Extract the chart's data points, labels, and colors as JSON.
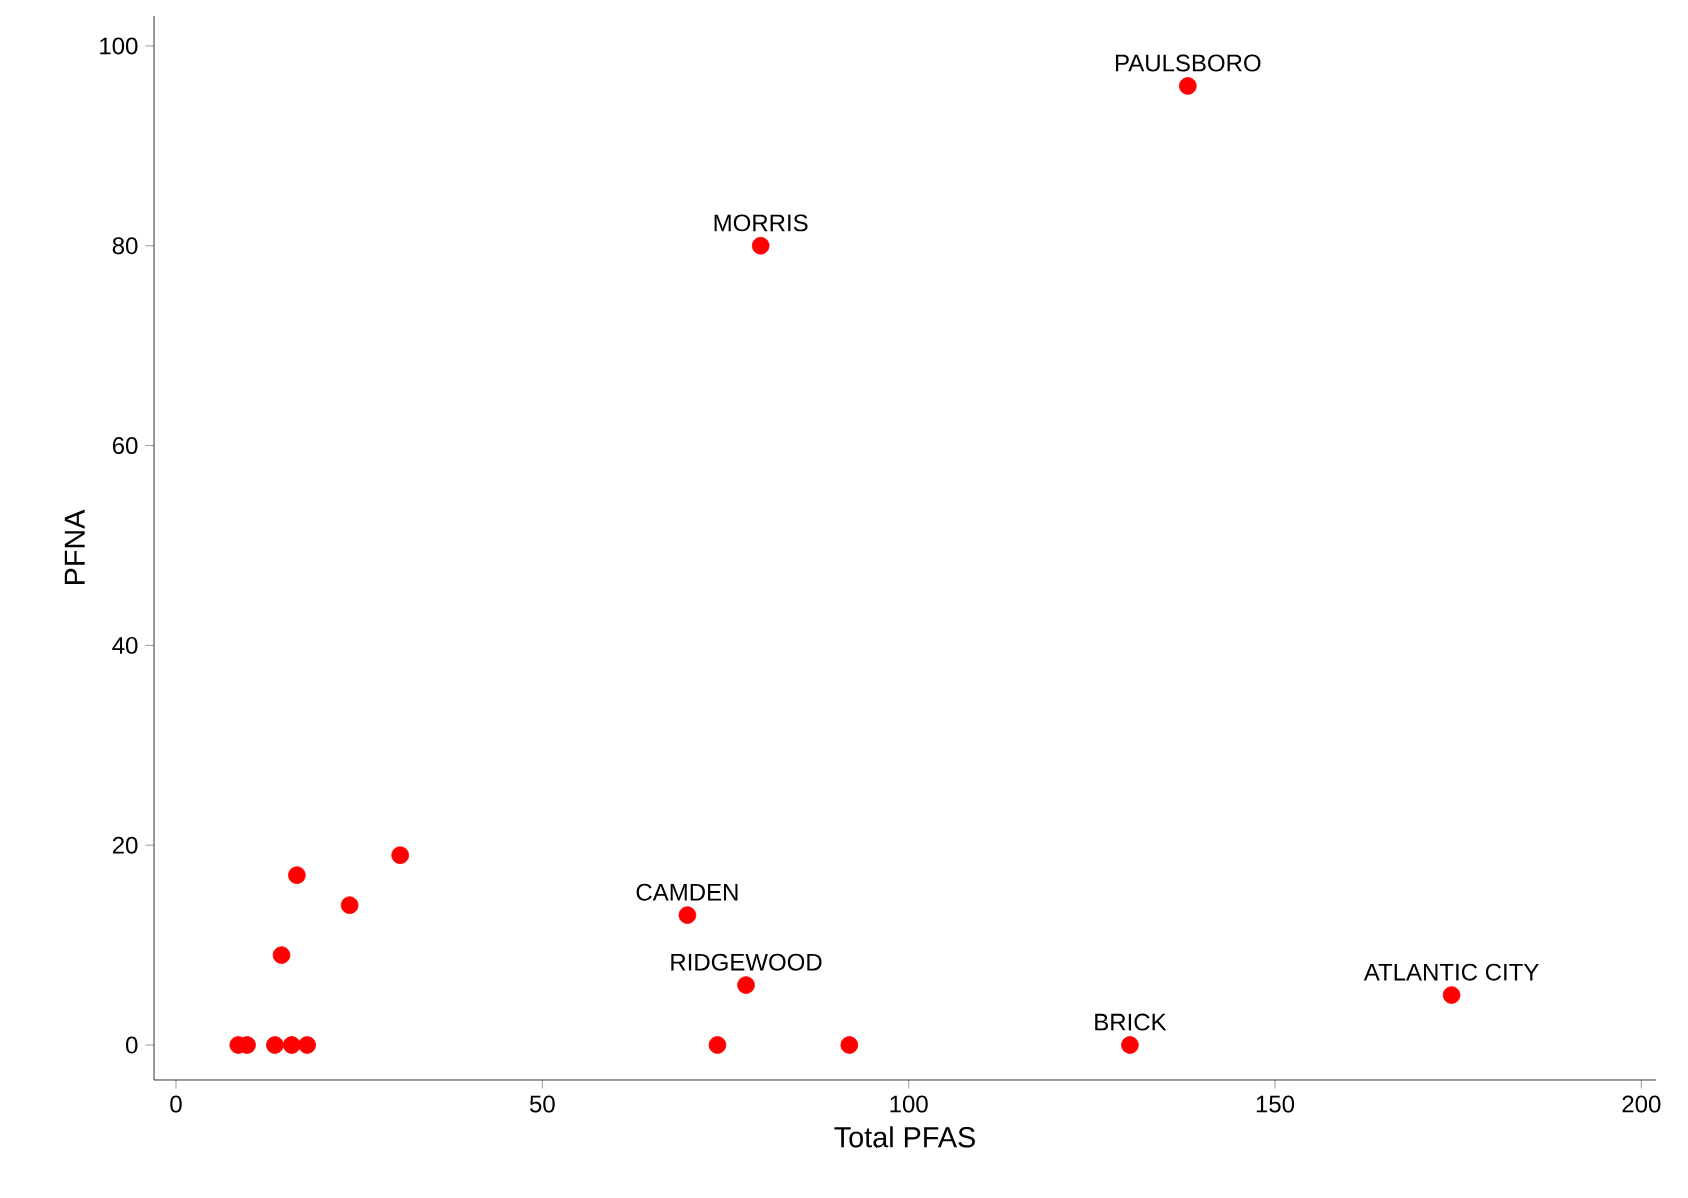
{
  "chart_data": {
    "type": "scatter",
    "xlabel": "Total PFAS",
    "ylabel": "PFNA",
    "xlim": [
      -3,
      202
    ],
    "ylim": [
      -3.5,
      103
    ],
    "xticks": [
      0,
      50,
      100,
      150,
      200
    ],
    "yticks": [
      0,
      20,
      40,
      60,
      80,
      100
    ],
    "series": [
      {
        "color": "#ff0000",
        "x": [
          8.5,
          9.7,
          13.5,
          15.8,
          17.9,
          73.9,
          91.9,
          14.4,
          16.5,
          23.7,
          30.6,
          69.8,
          77.8,
          79.8,
          138.1,
          130.2,
          174.1
        ],
        "values": [
          0,
          0,
          0,
          0,
          0,
          0,
          0,
          9,
          17,
          14,
          19,
          13,
          6,
          80,
          96,
          0,
          5
        ]
      }
    ],
    "annotations": [
      {
        "text": "PAULSBORO",
        "x": 138.1,
        "y": 96
      },
      {
        "text": "MORRIS",
        "x": 79.8,
        "y": 80
      },
      {
        "text": "CAMDEN",
        "x": 69.8,
        "y": 13
      },
      {
        "text": "RIDGEWOOD",
        "x": 77.8,
        "y": 6
      },
      {
        "text": "BRICK",
        "x": 130.2,
        "y": 0
      },
      {
        "text": "ATLANTIC CITY",
        "x": 174.1,
        "y": 5
      }
    ]
  }
}
